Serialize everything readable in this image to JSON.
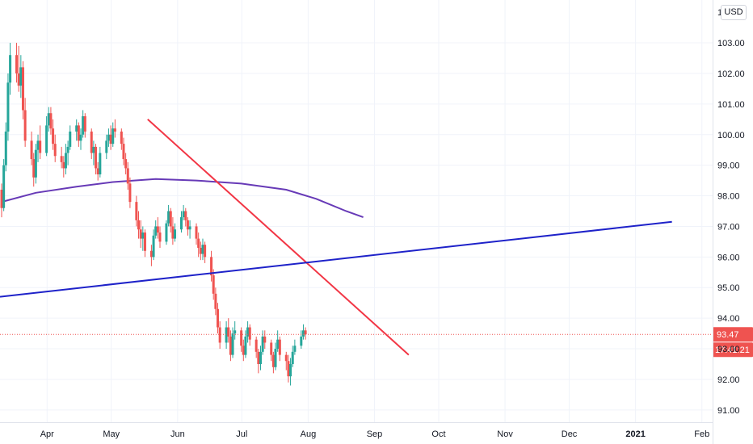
{
  "currency_button": "USD",
  "chart_data": {
    "type": "candlestick",
    "title": "",
    "xlabel": "",
    "ylabel": "",
    "ylim": [
      90.6,
      104.4
    ],
    "y_ticks": [
      "91.00",
      "92.00",
      "93.00",
      "94.00",
      "95.00",
      "96.00",
      "97.00",
      "98.00",
      "99.00",
      "100.00",
      "101.00",
      "102.00",
      "103.00"
    ],
    "x_ticks": [
      {
        "label": "Apr",
        "date": "2020-04-01"
      },
      {
        "label": "May",
        "date": "2020-05-01"
      },
      {
        "label": "Jun",
        "date": "2020-06-01"
      },
      {
        "label": "Jul",
        "date": "2020-07-01"
      },
      {
        "label": "Aug",
        "date": "2020-08-01"
      },
      {
        "label": "Sep",
        "date": "2020-09-01"
      },
      {
        "label": "Oct",
        "date": "2020-10-01"
      },
      {
        "label": "Nov",
        "date": "2020-11-01"
      },
      {
        "label": "Dec",
        "date": "2020-12-01"
      },
      {
        "label": "2021",
        "date": "2021-01-01",
        "bold": true
      },
      {
        "label": "Feb",
        "date": "2021-02-01"
      }
    ],
    "x_range": [
      "2020-03-10",
      "2021-02-06"
    ],
    "last_price": {
      "value": 93.47,
      "label": "93.47",
      "countdown": "17:41:21",
      "color": "#ef5350"
    },
    "colors": {
      "up": "#26a69a",
      "down": "#ef5350",
      "ma": "#673ab7",
      "trend_down": "#f23645",
      "trend_up": "#1e22c9"
    },
    "candles": [
      [
        98.2,
        98.4,
        97.3,
        97.6
      ],
      [
        97.6,
        99.2,
        97.5,
        99.0
      ],
      [
        99.0,
        100.4,
        98.8,
        100.1
      ],
      [
        100.1,
        102.0,
        99.8,
        101.7
      ],
      [
        101.7,
        103.0,
        101.3,
        102.6
      ],
      [
        102.6,
        103.0,
        101.7,
        102.0
      ],
      [
        102.0,
        102.9,
        101.4,
        101.6
      ],
      [
        101.6,
        102.6,
        101.2,
        102.2
      ],
      [
        102.2,
        102.4,
        100.5,
        100.8
      ],
      [
        100.8,
        101.2,
        99.6,
        99.8
      ],
      [
        99.8,
        100.1,
        99.0,
        99.2
      ],
      [
        99.2,
        99.4,
        98.3,
        98.6
      ],
      [
        98.6,
        99.7,
        98.4,
        99.5
      ],
      [
        99.5,
        100.0,
        99.1,
        99.8
      ],
      [
        99.8,
        100.3,
        99.2,
        99.4
      ],
      [
        99.4,
        100.6,
        99.3,
        100.3
      ],
      [
        100.3,
        100.9,
        100.1,
        100.7
      ],
      [
        100.7,
        100.9,
        100.0,
        100.2
      ],
      [
        100.2,
        100.5,
        99.5,
        99.7
      ],
      [
        99.7,
        100.0,
        99.1,
        99.3
      ],
      [
        99.3,
        99.6,
        98.9,
        99.1
      ],
      [
        99.1,
        99.3,
        98.6,
        98.9
      ],
      [
        98.9,
        99.7,
        98.7,
        99.4
      ],
      [
        99.4,
        99.8,
        99.0,
        99.6
      ],
      [
        99.6,
        100.3,
        99.5,
        100.1
      ],
      [
        100.1,
        100.5,
        99.8,
        100.3
      ],
      [
        100.3,
        100.4,
        99.6,
        99.8
      ],
      [
        99.8,
        100.2,
        99.5,
        100.0
      ],
      [
        100.0,
        100.8,
        99.9,
        100.6
      ],
      [
        100.6,
        100.7,
        99.9,
        100.1
      ],
      [
        100.1,
        100.2,
        99.2,
        99.4
      ],
      [
        99.4,
        99.8,
        99.0,
        99.6
      ],
      [
        99.6,
        99.7,
        98.7,
        98.9
      ],
      [
        98.9,
        99.1,
        98.5,
        98.7
      ],
      [
        98.7,
        99.6,
        98.6,
        99.4
      ],
      [
        99.4,
        100.0,
        99.2,
        99.8
      ],
      [
        99.8,
        100.2,
        99.6,
        100.0
      ],
      [
        100.0,
        100.3,
        99.5,
        99.7
      ],
      [
        99.7,
        100.4,
        99.6,
        100.2
      ],
      [
        100.2,
        100.5,
        99.9,
        100.1
      ],
      [
        100.1,
        100.2,
        99.5,
        99.7
      ],
      [
        99.7,
        99.9,
        99.0,
        99.2
      ],
      [
        99.2,
        99.4,
        98.7,
        98.9
      ],
      [
        98.9,
        99.1,
        98.2,
        98.4
      ],
      [
        98.4,
        98.6,
        97.6,
        97.8
      ],
      [
        97.8,
        98.0,
        97.0,
        97.2
      ],
      [
        97.2,
        97.5,
        96.6,
        96.9
      ],
      [
        96.9,
        97.2,
        96.3,
        96.6
      ],
      [
        96.6,
        97.0,
        96.2,
        96.8
      ],
      [
        96.8,
        96.9,
        96.0,
        96.2
      ],
      [
        96.2,
        96.4,
        95.7,
        96.0
      ],
      [
        96.0,
        96.9,
        95.9,
        96.7
      ],
      [
        96.7,
        97.2,
        96.6,
        97.0
      ],
      [
        97.0,
        97.3,
        96.6,
        96.8
      ],
      [
        96.8,
        97.0,
        96.3,
        96.5
      ],
      [
        96.5,
        97.2,
        96.4,
        97.1
      ],
      [
        97.1,
        97.7,
        97.0,
        97.5
      ],
      [
        97.5,
        97.6,
        96.8,
        97.0
      ],
      [
        97.0,
        97.3,
        96.4,
        96.6
      ],
      [
        96.6,
        97.1,
        96.5,
        96.9
      ],
      [
        96.9,
        97.5,
        96.8,
        97.3
      ],
      [
        97.3,
        97.7,
        97.2,
        97.5
      ],
      [
        97.5,
        97.6,
        97.0,
        97.2
      ],
      [
        97.2,
        97.3,
        96.7,
        96.9
      ],
      [
        96.9,
        97.2,
        96.6,
        97.0
      ],
      [
        97.0,
        97.1,
        96.4,
        96.6
      ],
      [
        96.6,
        96.8,
        96.0,
        96.3
      ],
      [
        96.3,
        96.5,
        95.9,
        96.1
      ],
      [
        96.1,
        96.6,
        95.9,
        96.4
      ],
      [
        96.4,
        96.5,
        95.8,
        96.0
      ],
      [
        96.0,
        96.2,
        95.2,
        95.4
      ],
      [
        95.4,
        95.6,
        94.6,
        94.8
      ],
      [
        94.8,
        95.0,
        94.1,
        94.3
      ],
      [
        94.3,
        94.5,
        93.5,
        93.7
      ],
      [
        93.7,
        93.9,
        93.0,
        93.2
      ],
      [
        93.2,
        93.9,
        93.0,
        93.7
      ],
      [
        93.7,
        94.0,
        93.2,
        93.4
      ],
      [
        93.4,
        93.6,
        92.6,
        92.8
      ],
      [
        92.8,
        93.7,
        92.7,
        93.5
      ],
      [
        93.5,
        93.9,
        93.3,
        93.6
      ],
      [
        93.6,
        93.7,
        92.9,
        93.1
      ],
      [
        93.1,
        93.3,
        92.6,
        92.8
      ],
      [
        92.8,
        93.6,
        92.7,
        93.4
      ],
      [
        93.4,
        93.9,
        93.2,
        93.7
      ],
      [
        93.7,
        93.8,
        93.1,
        93.3
      ],
      [
        93.3,
        93.4,
        92.7,
        92.9
      ],
      [
        92.9,
        93.0,
        92.2,
        92.5
      ],
      [
        92.5,
        93.1,
        92.3,
        92.9
      ],
      [
        92.9,
        93.6,
        92.8,
        93.4
      ],
      [
        93.4,
        93.6,
        93.0,
        93.2
      ],
      [
        93.2,
        93.3,
        92.6,
        92.8
      ],
      [
        92.8,
        92.9,
        92.2,
        92.4
      ],
      [
        92.4,
        93.2,
        92.3,
        93.0
      ],
      [
        93.0,
        93.6,
        92.9,
        93.3
      ],
      [
        93.3,
        93.4,
        92.6,
        92.8
      ],
      [
        92.8,
        92.9,
        92.3,
        92.6
      ],
      [
        92.6,
        92.8,
        91.9,
        92.1
      ],
      [
        92.1,
        92.7,
        91.8,
        92.5
      ],
      [
        92.5,
        93.1,
        92.4,
        92.9
      ],
      [
        92.9,
        93.3,
        92.8,
        93.1
      ],
      [
        93.1,
        93.6,
        93.0,
        93.4
      ],
      [
        93.4,
        93.8,
        93.3,
        93.6
      ],
      [
        93.6,
        93.7,
        93.3,
        93.47
      ]
    ],
    "moving_average": {
      "start": "2020-03-10",
      "points": [
        [
          0,
          97.8
        ],
        [
          12,
          98.1
        ],
        [
          25,
          98.3
        ],
        [
          38,
          98.45
        ],
        [
          52,
          98.55
        ],
        [
          65,
          98.5
        ],
        [
          80,
          98.4
        ],
        [
          95,
          98.2
        ],
        [
          105,
          97.9
        ],
        [
          115,
          97.5
        ],
        [
          121,
          97.3
        ]
      ]
    },
    "trend_lines": [
      {
        "name": "down",
        "from": [
          "2020-05-18",
          100.5
        ],
        "to": [
          "2020-09-17",
          92.8
        ]
      },
      {
        "name": "up",
        "from": [
          "2020-03-10",
          94.7
        ],
        "to": [
          "2021-01-18",
          97.15
        ]
      }
    ]
  }
}
